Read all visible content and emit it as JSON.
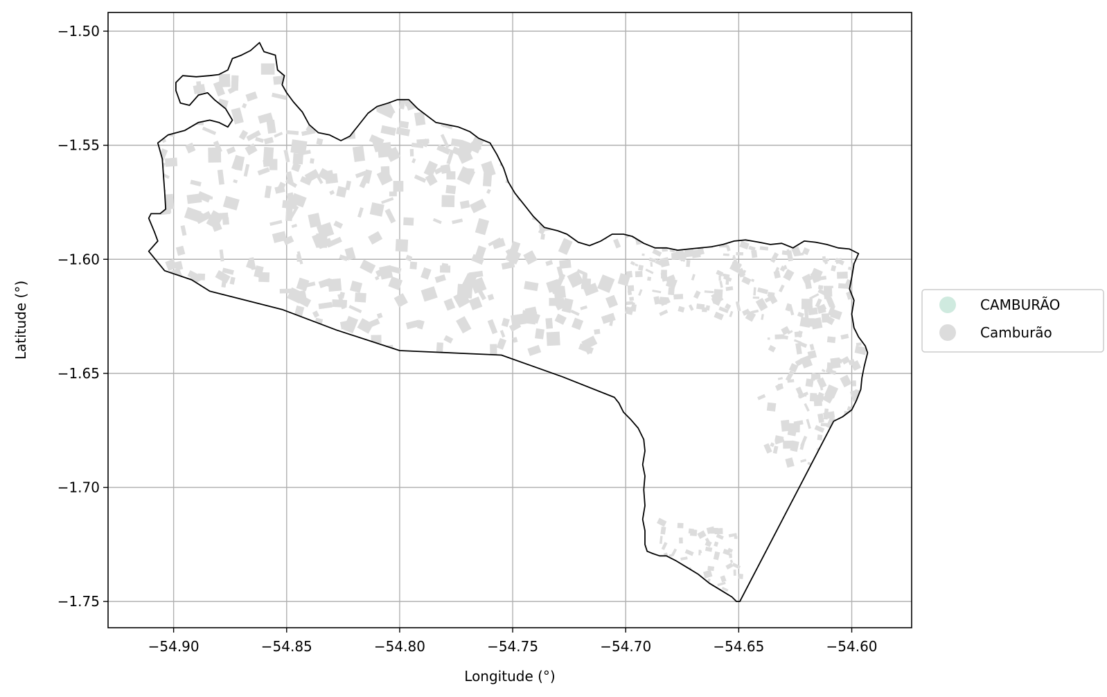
{
  "chart_data": {
    "type": "map",
    "xlabel": "Longitude (°)",
    "ylabel": "Latitude (°)",
    "xlim": [
      -54.929,
      -54.5735
    ],
    "ylim": [
      -1.7615,
      -1.4918
    ],
    "xticks": [
      -54.9,
      -54.85,
      -54.8,
      -54.75,
      -54.7,
      -54.65,
      -54.6
    ],
    "xtick_labels": [
      "−54.90",
      "−54.85",
      "−54.80",
      "−54.75",
      "−54.70",
      "−54.65",
      "−54.60"
    ],
    "yticks": [
      -1.5,
      -1.55,
      -1.6,
      -1.65,
      -1.7,
      -1.75
    ],
    "ytick_labels": [
      "−1.50",
      "−1.55",
      "−1.60",
      "−1.65",
      "−1.70",
      "−1.75"
    ],
    "grid": true,
    "legend_position": "center-right outside",
    "legend": [
      {
        "label": "CAMBURÃO",
        "color": "#cfeadf"
      },
      {
        "label": "Camburão",
        "color": "#dcdcdc"
      }
    ],
    "boundary_color": "#000000",
    "fill_color": "#dcdcdc",
    "boundary": [
      [
        -54.899,
        -1.5225
      ],
      [
        -54.896,
        -1.5195
      ],
      [
        -54.89,
        -1.52
      ],
      [
        -54.884,
        -1.5195
      ],
      [
        -54.88,
        -1.519
      ],
      [
        -54.876,
        -1.517
      ],
      [
        -54.874,
        -1.512
      ],
      [
        -54.87,
        -1.5105
      ],
      [
        -54.866,
        -1.5085
      ],
      [
        -54.862,
        -1.505
      ],
      [
        -54.86,
        -1.509
      ],
      [
        -54.855,
        -1.5105
      ],
      [
        -54.854,
        -1.517
      ],
      [
        -54.851,
        -1.5195
      ],
      [
        -54.852,
        -1.5235
      ],
      [
        -54.85,
        -1.527
      ],
      [
        -54.847,
        -1.531
      ],
      [
        -54.843,
        -1.5355
      ],
      [
        -54.84,
        -1.541
      ],
      [
        -54.836,
        -1.5445
      ],
      [
        -54.831,
        -1.5455
      ],
      [
        -54.826,
        -1.548
      ],
      [
        -54.822,
        -1.546
      ],
      [
        -54.818,
        -1.541
      ],
      [
        -54.814,
        -1.536
      ],
      [
        -54.81,
        -1.533
      ],
      [
        -54.805,
        -1.5315
      ],
      [
        -54.801,
        -1.53
      ],
      [
        -54.796,
        -1.53
      ],
      [
        -54.792,
        -1.534
      ],
      [
        -54.788,
        -1.537
      ],
      [
        -54.784,
        -1.54
      ],
      [
        -54.779,
        -1.541
      ],
      [
        -54.774,
        -1.542
      ],
      [
        -54.769,
        -1.544
      ],
      [
        -54.765,
        -1.547
      ],
      [
        -54.76,
        -1.549
      ],
      [
        -54.757,
        -1.554
      ],
      [
        -54.754,
        -1.56
      ],
      [
        -54.752,
        -1.566
      ],
      [
        -54.749,
        -1.571
      ],
      [
        -54.745,
        -1.576
      ],
      [
        -54.741,
        -1.581
      ],
      [
        -54.736,
        -1.586
      ],
      [
        -54.73,
        -1.5875
      ],
      [
        -54.726,
        -1.589
      ],
      [
        -54.721,
        -1.5925
      ],
      [
        -54.716,
        -1.594
      ],
      [
        -54.711,
        -1.592
      ],
      [
        -54.706,
        -1.589
      ],
      [
        -54.701,
        -1.589
      ],
      [
        -54.697,
        -1.59
      ],
      [
        -54.692,
        -1.593
      ],
      [
        -54.687,
        -1.595
      ],
      [
        -54.682,
        -1.595
      ],
      [
        -54.677,
        -1.596
      ],
      [
        -54.672,
        -1.5955
      ],
      [
        -54.667,
        -1.595
      ],
      [
        -54.662,
        -1.5945
      ],
      [
        -54.657,
        -1.5935
      ],
      [
        -54.652,
        -1.592
      ],
      [
        -54.647,
        -1.5915
      ],
      [
        -54.641,
        -1.5925
      ],
      [
        -54.636,
        -1.5935
      ],
      [
        -54.631,
        -1.593
      ],
      [
        -54.626,
        -1.595
      ],
      [
        -54.621,
        -1.592
      ],
      [
        -54.616,
        -1.5925
      ],
      [
        -54.611,
        -1.5935
      ],
      [
        -54.606,
        -1.595
      ],
      [
        -54.601,
        -1.5955
      ],
      [
        -54.597,
        -1.5975
      ],
      [
        -54.599,
        -1.602
      ],
      [
        -54.6,
        -1.608
      ],
      [
        -54.601,
        -1.613
      ],
      [
        -54.599,
        -1.618
      ],
      [
        -54.6,
        -1.624
      ],
      [
        -54.599,
        -1.63
      ],
      [
        -54.597,
        -1.634
      ],
      [
        -54.594,
        -1.638
      ],
      [
        -54.593,
        -1.641
      ],
      [
        -54.5945,
        -1.647
      ],
      [
        -54.5955,
        -1.652
      ],
      [
        -54.596,
        -1.657
      ],
      [
        -54.598,
        -1.662
      ],
      [
        -54.6,
        -1.666
      ],
      [
        -54.604,
        -1.669
      ],
      [
        -54.608,
        -1.671
      ],
      [
        -54.6495,
        -1.75
      ],
      [
        -54.651,
        -1.75
      ],
      [
        -54.653,
        -1.748
      ],
      [
        -54.658,
        -1.745
      ],
      [
        -54.663,
        -1.742
      ],
      [
        -54.668,
        -1.738
      ],
      [
        -54.673,
        -1.735
      ],
      [
        -54.678,
        -1.732
      ],
      [
        -54.682,
        -1.73
      ],
      [
        -54.685,
        -1.73
      ],
      [
        -54.688,
        -1.729
      ],
      [
        -54.6905,
        -1.728
      ],
      [
        -54.6915,
        -1.725
      ],
      [
        -54.6915,
        -1.719
      ],
      [
        -54.6925,
        -1.714
      ],
      [
        -54.6915,
        -1.708
      ],
      [
        -54.692,
        -1.701
      ],
      [
        -54.6915,
        -1.695
      ],
      [
        -54.6925,
        -1.69
      ],
      [
        -54.6915,
        -1.684
      ],
      [
        -54.692,
        -1.679
      ],
      [
        -54.6945,
        -1.674
      ],
      [
        -54.698,
        -1.67
      ],
      [
        -54.701,
        -1.667
      ],
      [
        -54.703,
        -1.663
      ],
      [
        -54.705,
        -1.6605
      ],
      [
        -54.728,
        -1.6515
      ],
      [
        -54.755,
        -1.642
      ],
      [
        -54.8,
        -1.64
      ],
      [
        -54.828,
        -1.631
      ],
      [
        -54.852,
        -1.622
      ],
      [
        -54.884,
        -1.614
      ],
      [
        -54.892,
        -1.609
      ],
      [
        -54.904,
        -1.605
      ],
      [
        -54.911,
        -1.5965
      ],
      [
        -54.907,
        -1.592
      ],
      [
        -54.9085,
        -1.588
      ],
      [
        -54.911,
        -1.582
      ],
      [
        -54.91,
        -1.58
      ],
      [
        -54.906,
        -1.58
      ],
      [
        -54.9035,
        -1.578
      ],
      [
        -54.904,
        -1.57
      ],
      [
        -54.9045,
        -1.563
      ],
      [
        -54.905,
        -1.556
      ],
      [
        -54.907,
        -1.549
      ],
      [
        -54.9025,
        -1.5455
      ],
      [
        -54.895,
        -1.5435
      ],
      [
        -54.889,
        -1.54
      ],
      [
        -54.884,
        -1.539
      ],
      [
        -54.88,
        -1.54
      ],
      [
        -54.876,
        -1.542
      ],
      [
        -54.874,
        -1.539
      ],
      [
        -54.877,
        -1.534
      ],
      [
        -54.882,
        -1.53
      ],
      [
        -54.885,
        -1.527
      ],
      [
        -54.889,
        -1.528
      ],
      [
        -54.893,
        -1.5325
      ],
      [
        -54.897,
        -1.5315
      ],
      [
        -54.899,
        -1.526
      ],
      [
        -54.899,
        -1.5225
      ]
    ]
  }
}
